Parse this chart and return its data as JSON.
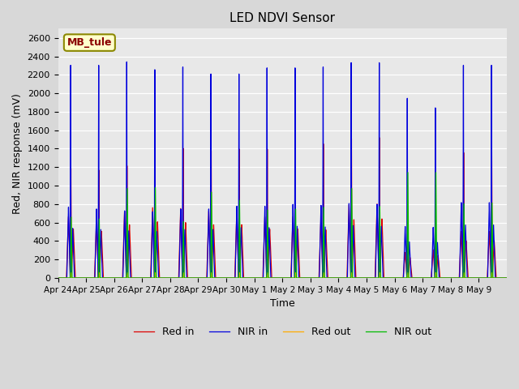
{
  "title": "LED NDVI Sensor",
  "xlabel": "Time",
  "ylabel": "Red, NIR response (mV)",
  "ylim": [
    0,
    2700
  ],
  "yticks": [
    0,
    200,
    400,
    600,
    800,
    1000,
    1200,
    1400,
    1600,
    1800,
    2000,
    2200,
    2400,
    2600
  ],
  "label_text": "MB_tule",
  "legend_entries": [
    "Red in",
    "NIR in",
    "Red out",
    "NIR out"
  ],
  "colors": [
    "#dd0000",
    "#0000dd",
    "#ffaa00",
    "#00bb00"
  ],
  "axes_bg": "#e8e8e8",
  "x_tick_labels": [
    "Apr 24",
    "Apr 25",
    "Apr 26",
    "Apr 27",
    "Apr 28",
    "Apr 29",
    "Apr 30",
    "May 1",
    "May 2",
    "May 3",
    "May 4",
    "May 5",
    "May 6",
    "May 7",
    "May 8",
    "May 9"
  ],
  "num_days": 16,
  "spike_peaks_red_in": [
    1250,
    1230,
    1280,
    1340,
    1480,
    1450,
    1470,
    1470,
    800,
    1530,
    1590,
    1600,
    390,
    500,
    1430,
    1430
  ],
  "spike_peaks_nir_in": [
    2450,
    2450,
    2490,
    2400,
    2430,
    2350,
    2350,
    2420,
    2420,
    2430,
    2480,
    2480,
    2070,
    1960,
    2450,
    2450
  ],
  "spike_peaks_nir_out": [
    680,
    660,
    1000,
    1010,
    630,
    960,
    870,
    760,
    770,
    790,
    1000,
    800,
    1180,
    1180,
    830,
    840
  ],
  "shoulder_red_in": [
    670,
    640,
    730,
    770,
    760,
    730,
    730,
    670,
    670,
    660,
    800,
    810,
    280,
    310,
    510,
    510
  ],
  "shoulder_nir_in": [
    770,
    750,
    730,
    720,
    750,
    750,
    780,
    780,
    800,
    790,
    810,
    800,
    560,
    550,
    820,
    820
  ],
  "red_out_peak": 60
}
